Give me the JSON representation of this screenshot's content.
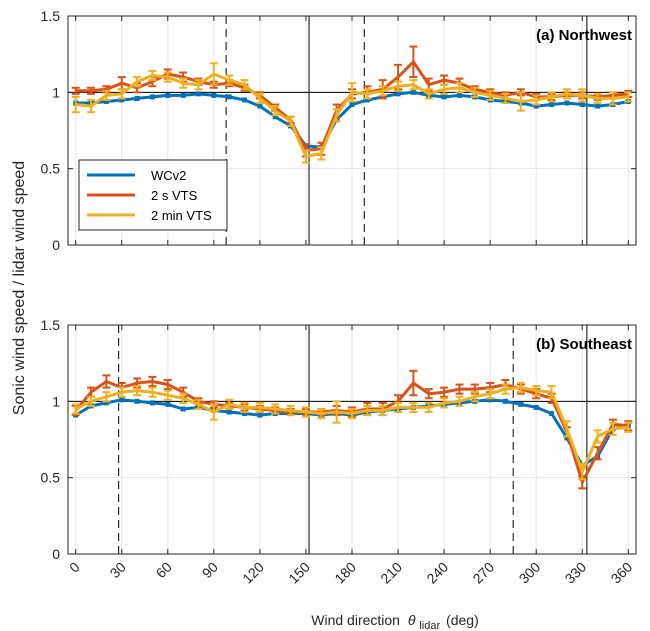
{
  "figure": {
    "ylabel": "Sonic wind speed / lidar wind speed",
    "xlabel": "Wind direction",
    "xlabel_symbol": "θ",
    "xlabel_sub": "lidar",
    "xlabel_unit": "(deg)"
  },
  "legend": {
    "entries": [
      "WCv2",
      "2 s VTS",
      "2 min VTS"
    ]
  },
  "colors": {
    "WCv2": "#0072BD",
    "2 s VTS": "#D95319",
    "2 min VTS": "#EDB120",
    "grid": "#e6e6e6",
    "axis": "#262626"
  },
  "chart_data": [
    {
      "type": "line",
      "title": "(a) Northwest",
      "xlim": [
        -5,
        365
      ],
      "ylim": [
        0,
        1.5
      ],
      "xticks": [
        0,
        30,
        60,
        90,
        120,
        150,
        180,
        210,
        240,
        270,
        300,
        330,
        360
      ],
      "yticks": [
        0,
        0.5,
        1,
        1.5
      ],
      "ytick_labels": [
        "0",
        "0.5",
        "1",
        "1.5"
      ],
      "grid": true,
      "legend_position": "lower-left",
      "reference_lines": {
        "horizontal": [
          1
        ],
        "solid_vertical": [
          152,
          333
        ],
        "dashed_vertical": [
          98,
          188
        ]
      },
      "x": [
        0,
        10,
        20,
        30,
        40,
        50,
        60,
        70,
        80,
        90,
        100,
        110,
        120,
        130,
        140,
        150,
        160,
        170,
        180,
        190,
        200,
        210,
        220,
        230,
        240,
        250,
        260,
        270,
        280,
        290,
        300,
        310,
        320,
        330,
        340,
        350,
        360
      ],
      "series": [
        {
          "name": "WCv2",
          "values": [
            0.93,
            0.93,
            0.94,
            0.95,
            0.96,
            0.97,
            0.98,
            0.98,
            0.99,
            0.98,
            0.97,
            0.95,
            0.91,
            0.84,
            0.78,
            0.65,
            0.64,
            0.82,
            0.92,
            0.95,
            0.97,
            0.99,
            1.0,
            0.98,
            0.97,
            0.98,
            0.97,
            0.95,
            0.94,
            0.93,
            0.91,
            0.92,
            0.93,
            0.92,
            0.91,
            0.92,
            0.94
          ],
          "errors": []
        },
        {
          "name": "2 s VTS",
          "values": [
            1.01,
            1.01,
            1.02,
            1.06,
            1.03,
            1.07,
            1.12,
            1.1,
            1.07,
            1.05,
            1.06,
            1.03,
            0.98,
            0.9,
            0.82,
            0.62,
            0.63,
            0.88,
            0.99,
            1.0,
            1.02,
            1.1,
            1.2,
            1.05,
            1.08,
            1.06,
            1.02,
            1.0,
            0.98,
            1.0,
            0.97,
            0.97,
            0.98,
            0.98,
            0.97,
            0.98,
            0.99
          ],
          "errors": [
            0.02,
            0.02,
            0.02,
            0.04,
            0.03,
            0.03,
            0.03,
            0.03,
            0.02,
            0.02,
            0.02,
            0.02,
            0.02,
            0.02,
            0.02,
            0.04,
            0.04,
            0.04,
            0.03,
            0.04,
            0.06,
            0.08,
            0.1,
            0.04,
            0.03,
            0.03,
            0.02,
            0.02,
            0.02,
            0.02,
            0.02,
            0.02,
            0.02,
            0.02,
            0.02,
            0.02,
            0.02
          ]
        },
        {
          "name": "2 min VTS",
          "values": [
            0.92,
            0.91,
            0.98,
            0.99,
            1.07,
            1.11,
            1.1,
            1.06,
            1.05,
            1.12,
            1.08,
            1.05,
            0.96,
            0.88,
            0.81,
            0.58,
            0.6,
            0.85,
            1.0,
            0.99,
            1.01,
            1.04,
            1.05,
            0.99,
            1.02,
            1.03,
            1.0,
            0.98,
            0.96,
            0.94,
            0.95,
            0.97,
            0.99,
            0.98,
            0.96,
            0.96,
            0.97
          ],
          "errors": [
            0.05,
            0.04,
            0.03,
            0.03,
            0.03,
            0.03,
            0.03,
            0.03,
            0.03,
            0.07,
            0.03,
            0.03,
            0.03,
            0.03,
            0.03,
            0.04,
            0.04,
            0.04,
            0.06,
            0.03,
            0.03,
            0.03,
            0.03,
            0.03,
            0.03,
            0.03,
            0.03,
            0.03,
            0.03,
            0.06,
            0.03,
            0.03,
            0.03,
            0.04,
            0.03,
            0.04,
            0.03
          ]
        }
      ]
    },
    {
      "type": "line",
      "title": "(b) Southeast",
      "xlim": [
        -5,
        365
      ],
      "ylim": [
        0,
        1.5
      ],
      "xticks": [
        0,
        30,
        60,
        90,
        120,
        150,
        180,
        210,
        240,
        270,
        300,
        330,
        360
      ],
      "xtick_labels": [
        "0",
        "30",
        "60",
        "90",
        "120",
        "150",
        "180",
        "210",
        "240",
        "270",
        "300",
        "330",
        "360"
      ],
      "yticks": [
        0,
        0.5,
        1,
        1.5
      ],
      "ytick_labels": [
        "0",
        "0.5",
        "1",
        "1.5"
      ],
      "grid": true,
      "reference_lines": {
        "horizontal": [
          1
        ],
        "solid_vertical": [
          152,
          333
        ],
        "dashed_vertical": [
          28,
          285
        ]
      },
      "x": [
        0,
        10,
        20,
        30,
        40,
        50,
        60,
        70,
        80,
        90,
        100,
        110,
        120,
        130,
        140,
        150,
        160,
        170,
        180,
        190,
        200,
        210,
        220,
        230,
        240,
        250,
        260,
        270,
        280,
        290,
        300,
        310,
        320,
        330,
        340,
        350,
        360
      ],
      "series": [
        {
          "name": "WCv2",
          "values": [
            0.91,
            0.97,
            0.99,
            1.01,
            1.0,
            0.99,
            0.98,
            0.95,
            0.96,
            0.94,
            0.93,
            0.92,
            0.91,
            0.92,
            0.92,
            0.92,
            0.91,
            0.92,
            0.91,
            0.93,
            0.94,
            0.95,
            0.96,
            0.97,
            0.98,
            0.99,
            1.0,
            1.01,
            1.0,
            0.98,
            0.96,
            0.92,
            0.76,
            0.58,
            0.64,
            0.82,
            0.84
          ],
          "errors": []
        },
        {
          "name": "2 s VTS",
          "values": [
            0.94,
            1.06,
            1.13,
            1.09,
            1.12,
            1.13,
            1.11,
            1.06,
            1.0,
            0.98,
            0.97,
            0.96,
            0.95,
            0.94,
            0.93,
            0.93,
            0.93,
            0.94,
            0.93,
            0.95,
            0.95,
            1.0,
            1.12,
            1.05,
            1.06,
            1.08,
            1.08,
            1.09,
            1.11,
            1.08,
            1.05,
            1.02,
            0.8,
            0.47,
            0.66,
            0.85,
            0.84
          ],
          "errors": [
            0.03,
            0.03,
            0.04,
            0.03,
            0.03,
            0.03,
            0.03,
            0.03,
            0.02,
            0.02,
            0.02,
            0.02,
            0.02,
            0.02,
            0.02,
            0.02,
            0.02,
            0.03,
            0.03,
            0.04,
            0.04,
            0.04,
            0.08,
            0.03,
            0.03,
            0.03,
            0.03,
            0.03,
            0.03,
            0.03,
            0.03,
            0.03,
            0.03,
            0.04,
            0.04,
            0.03,
            0.03
          ]
        },
        {
          "name": "2 min VTS",
          "values": [
            0.95,
            1.0,
            1.03,
            1.06,
            1.07,
            1.06,
            1.04,
            1.02,
            0.98,
            0.93,
            0.98,
            0.96,
            0.96,
            0.95,
            0.94,
            0.93,
            0.92,
            0.93,
            0.92,
            0.94,
            0.94,
            0.96,
            0.96,
            0.96,
            0.99,
            1.0,
            1.03,
            1.05,
            1.08,
            1.09,
            1.07,
            1.06,
            0.82,
            0.54,
            0.77,
            0.82,
            0.83
          ],
          "errors": [
            0.03,
            0.03,
            0.03,
            0.03,
            0.03,
            0.03,
            0.03,
            0.03,
            0.03,
            0.05,
            0.03,
            0.03,
            0.03,
            0.03,
            0.03,
            0.03,
            0.03,
            0.07,
            0.03,
            0.03,
            0.03,
            0.03,
            0.03,
            0.03,
            0.03,
            0.03,
            0.03,
            0.03,
            0.03,
            0.03,
            0.03,
            0.04,
            0.05,
            0.05,
            0.04,
            0.04,
            0.03
          ]
        }
      ]
    }
  ]
}
